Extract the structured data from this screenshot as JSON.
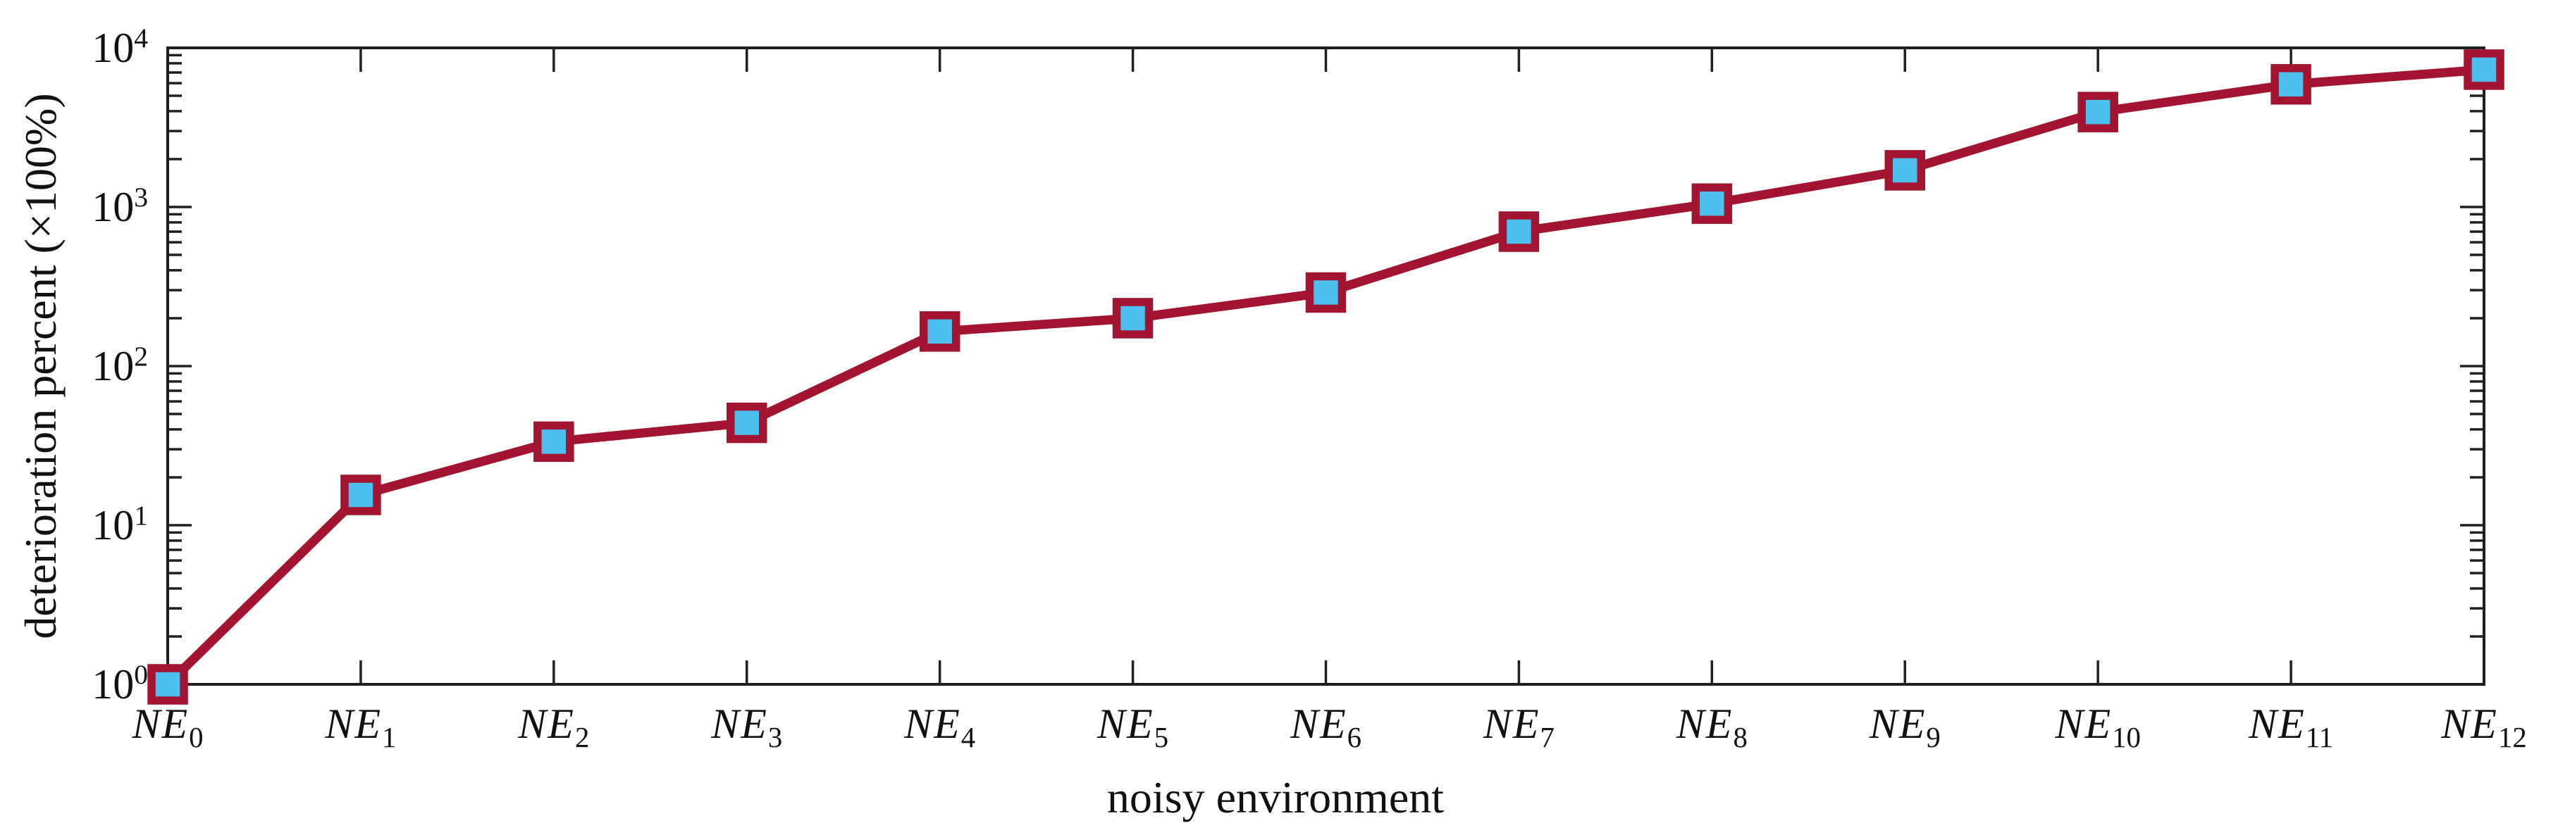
{
  "figure": {
    "background": "#ffffff"
  },
  "chart_data": {
    "type": "line",
    "title": "",
    "xlabel": "noisy environment",
    "ylabel": "deterioration percent (×100%)",
    "categories": [
      "NE_0",
      "NE_1",
      "NE_2",
      "NE_3",
      "NE_4",
      "NE_5",
      "NE_6",
      "NE_7",
      "NE_8",
      "NE_9",
      "NE_10",
      "NE_11",
      "NE_12"
    ],
    "values": [
      1,
      15.5,
      33.5,
      44,
      165,
      200,
      290,
      700,
      1050,
      1700,
      3950,
      5900,
      7300
    ],
    "yscale": "log",
    "ylim": [
      1,
      10000
    ],
    "y_tick_exponents": [
      0,
      1,
      2,
      3,
      4
    ],
    "y_tick_base": "10",
    "grid": false,
    "legend": "none",
    "box": true,
    "styles": {
      "line_color": "#A2142F",
      "line_width": 13,
      "marker": "square",
      "marker_face_color": "#4DBEEE",
      "marker_edge_color": "#A2142F",
      "axis_color": "#1f1f1f",
      "text_color": "#111111"
    }
  }
}
